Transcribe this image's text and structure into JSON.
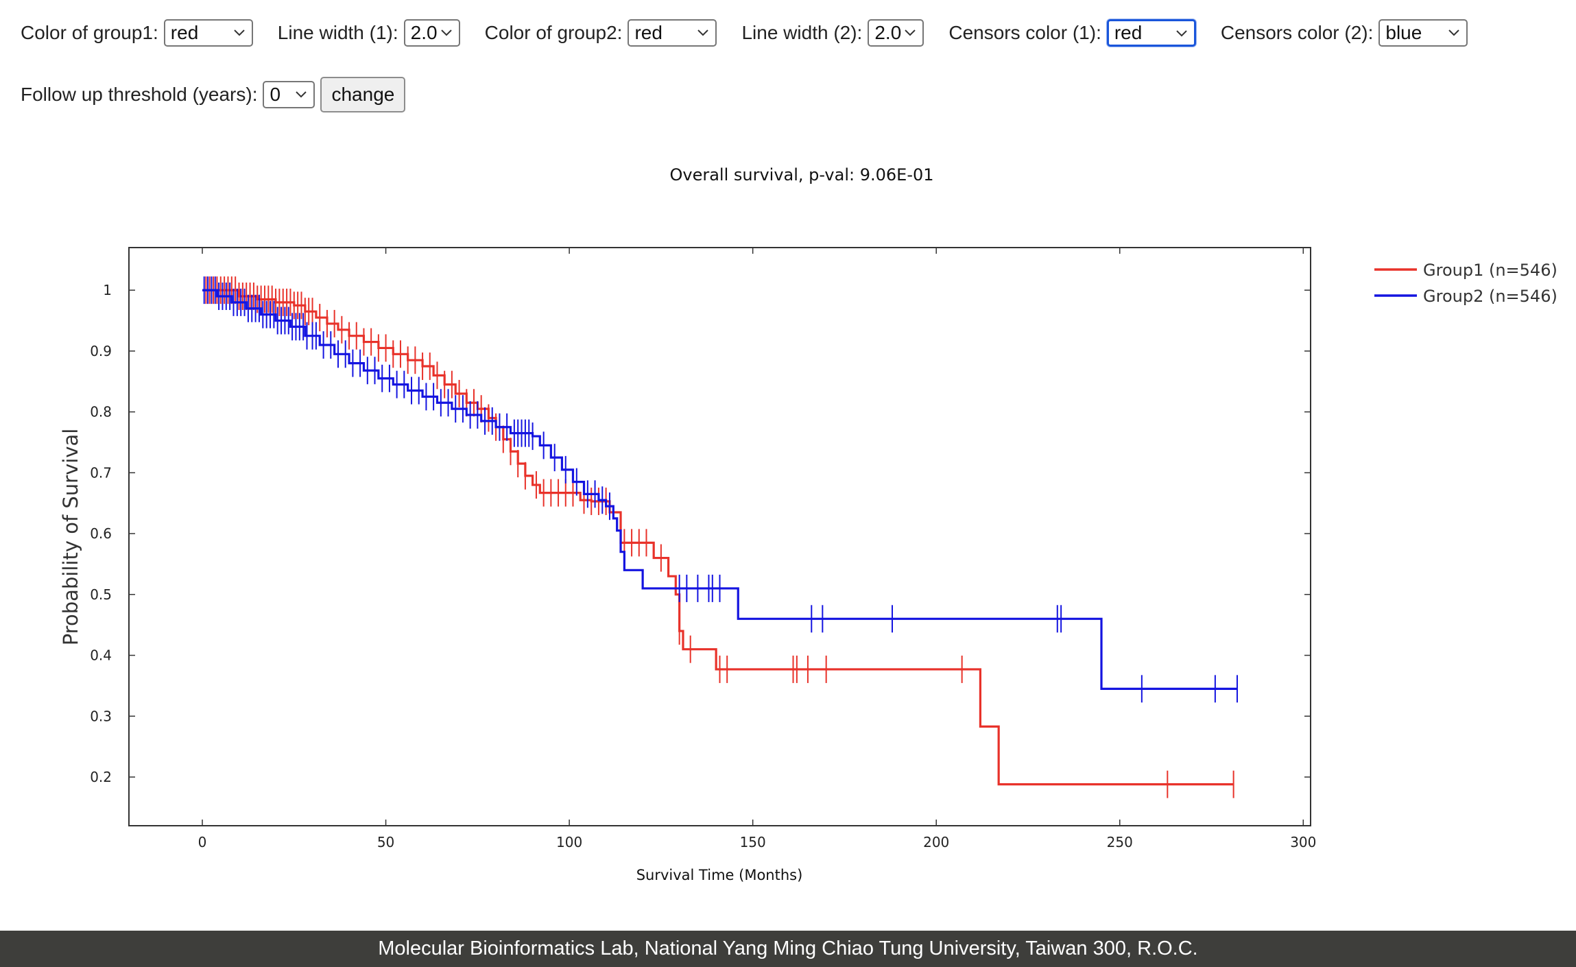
{
  "controls": {
    "row1": [
      {
        "label": "Color of group1:",
        "value": "red"
      },
      {
        "label": "Line width (1):",
        "value": "2.0"
      },
      {
        "label": "Color of group2:",
        "value": "red"
      },
      {
        "label": "Line width (2):",
        "value": "2.0"
      },
      {
        "label": "Censors color (1):",
        "value": "red"
      },
      {
        "label": "Censors color (2):",
        "value": "blue"
      }
    ],
    "row2": {
      "threshold_label": "Follow up threshold (years):",
      "threshold_value": "0",
      "change_label": "change"
    }
  },
  "footer": {
    "text": "Molecular Bioinformatics Lab, National Yang Ming Chiao Tung University, Taiwan 300, R.O.C."
  },
  "colors": {
    "group1": "#e8322a",
    "group2": "#1414e0",
    "footer_bg": "#3e3e3b"
  },
  "chart_data": {
    "type": "line",
    "title": "Overall survival, p-val: 9.06E-01",
    "xlabel": "Survival Time (Months)",
    "ylabel": "Probability of Survival",
    "xlim": [
      -20,
      302
    ],
    "ylim": [
      0.12,
      1.07
    ],
    "xticks": [
      0,
      50,
      100,
      150,
      200,
      250,
      300
    ],
    "yticks": [
      0.2,
      0.3,
      0.4,
      0.5,
      0.6,
      0.7,
      0.8,
      0.9,
      1
    ],
    "ytick_labels": [
      "0.2",
      "0.3",
      "0.4",
      "0.5",
      "0.6",
      "0.7",
      "0.8",
      "0.9",
      "1"
    ],
    "legend_position": "top-right",
    "series": [
      {
        "name": "Group1 (n=546)",
        "color": "#e8322a",
        "steps": [
          [
            0,
            1.0
          ],
          [
            6,
            1.0
          ],
          [
            10,
            0.99
          ],
          [
            15,
            0.985
          ],
          [
            20,
            0.98
          ],
          [
            25,
            0.975
          ],
          [
            28,
            0.965
          ],
          [
            31,
            0.955
          ],
          [
            34,
            0.945
          ],
          [
            37,
            0.935
          ],
          [
            40,
            0.925
          ],
          [
            44,
            0.915
          ],
          [
            48,
            0.905
          ],
          [
            52,
            0.895
          ],
          [
            56,
            0.885
          ],
          [
            60,
            0.875
          ],
          [
            63,
            0.86
          ],
          [
            66,
            0.845
          ],
          [
            69,
            0.83
          ],
          [
            72,
            0.815
          ],
          [
            75,
            0.805
          ],
          [
            78,
            0.79
          ],
          [
            80,
            0.775
          ],
          [
            82,
            0.755
          ],
          [
            84,
            0.735
          ],
          [
            86,
            0.715
          ],
          [
            88,
            0.695
          ],
          [
            90,
            0.68
          ],
          [
            92,
            0.667
          ],
          [
            103,
            0.655
          ],
          [
            106,
            0.653
          ],
          [
            111,
            0.635
          ],
          [
            114,
            0.585
          ],
          [
            123,
            0.56
          ],
          [
            127,
            0.53
          ],
          [
            129,
            0.5
          ],
          [
            130,
            0.44
          ],
          [
            131,
            0.41
          ],
          [
            140,
            0.377
          ],
          [
            212,
            0.283
          ],
          [
            217,
            0.188
          ],
          [
            281,
            0.188
          ]
        ],
        "censors": [
          1,
          2,
          3,
          4,
          5,
          6,
          7,
          8,
          9,
          10,
          11,
          12,
          13,
          14,
          15,
          16,
          17,
          18,
          19,
          20,
          21,
          22,
          23,
          24,
          25,
          26,
          27,
          28,
          29,
          30,
          32,
          34,
          36,
          38,
          40,
          42,
          44,
          46,
          48,
          50,
          52,
          54,
          56,
          58,
          60,
          62,
          64,
          66,
          68,
          70,
          72,
          74,
          76,
          78,
          80,
          82,
          84,
          86,
          88,
          91,
          93,
          95,
          97,
          99,
          101,
          104,
          106,
          108,
          110,
          115,
          117,
          119,
          121,
          125,
          130,
          133,
          141,
          143,
          161,
          162,
          165,
          170,
          207,
          263,
          281
        ]
      },
      {
        "name": "Group2 (n=546)",
        "color": "#1414e0",
        "steps": [
          [
            0,
            1.0
          ],
          [
            4,
            0.99
          ],
          [
            8,
            0.98
          ],
          [
            12,
            0.97
          ],
          [
            16,
            0.96
          ],
          [
            20,
            0.95
          ],
          [
            24,
            0.94
          ],
          [
            28,
            0.925
          ],
          [
            32,
            0.91
          ],
          [
            36,
            0.895
          ],
          [
            40,
            0.88
          ],
          [
            44,
            0.868
          ],
          [
            48,
            0.855
          ],
          [
            52,
            0.845
          ],
          [
            56,
            0.835
          ],
          [
            60,
            0.825
          ],
          [
            64,
            0.815
          ],
          [
            68,
            0.805
          ],
          [
            72,
            0.795
          ],
          [
            76,
            0.785
          ],
          [
            80,
            0.775
          ],
          [
            84,
            0.765
          ],
          [
            90,
            0.76
          ],
          [
            92,
            0.745
          ],
          [
            95,
            0.725
          ],
          [
            98,
            0.705
          ],
          [
            101,
            0.685
          ],
          [
            104,
            0.665
          ],
          [
            108,
            0.655
          ],
          [
            110,
            0.645
          ],
          [
            112,
            0.625
          ],
          [
            113,
            0.605
          ],
          [
            114,
            0.57
          ],
          [
            115,
            0.54
          ],
          [
            120,
            0.51
          ],
          [
            146,
            0.46
          ],
          [
            245,
            0.345
          ],
          [
            282,
            0.345
          ]
        ],
        "censors": [
          0.5,
          1.5,
          2.5,
          3.5,
          4.5,
          5.5,
          6.5,
          7.5,
          8.5,
          9.5,
          10.5,
          11.5,
          12.5,
          13.5,
          14.5,
          15.5,
          16.5,
          17.5,
          18.5,
          19.5,
          20.5,
          21.5,
          22.5,
          23.5,
          24.5,
          25.5,
          26.5,
          27.5,
          28.5,
          30,
          31,
          33,
          35,
          37,
          39,
          41,
          43,
          45,
          47,
          49,
          51,
          53,
          55,
          57,
          59,
          61,
          63,
          65,
          67,
          69,
          71,
          73,
          75,
          77,
          79,
          81,
          83,
          85,
          86,
          87,
          88,
          89,
          90,
          93,
          96,
          99,
          102,
          105,
          107,
          109,
          111,
          130,
          132,
          135,
          138,
          139,
          141,
          166,
          169,
          188,
          233,
          234,
          256,
          276,
          282
        ]
      }
    ]
  }
}
